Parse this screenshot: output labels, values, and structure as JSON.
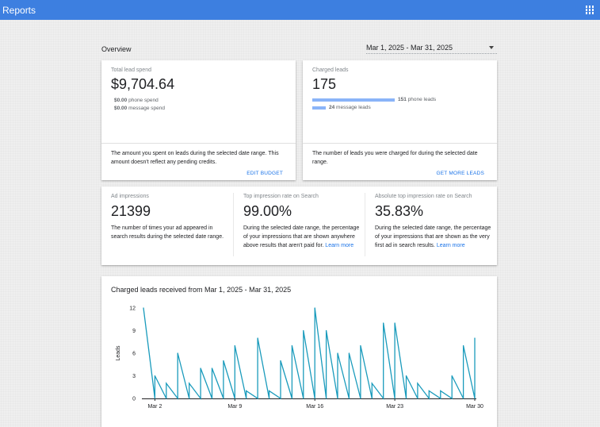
{
  "header": {
    "title": "Reports",
    "apps_icon": "apps-grid-icon"
  },
  "overview": {
    "label": "Overview",
    "date_range": "Mar 1, 2025 - Mar 31, 2025"
  },
  "spend_card": {
    "label": "Total lead spend",
    "amount": "$9,704.64",
    "phone_value": "$0.00",
    "phone_label": "phone spend",
    "message_value": "$0.00",
    "message_label": "message spend",
    "footer_text": "The amount you spent on leads during the selected date range. This amount doesn't reflect any pending credits.",
    "action": "EDIT BUDGET"
  },
  "leads_card": {
    "label": "Charged leads",
    "count": "175",
    "phone_count": "151",
    "phone_label": "phone leads",
    "phone_fraction": 0.863,
    "message_count": "24",
    "message_label": "message leads",
    "message_fraction": 0.137,
    "footer_text": "The number of leads you were charged for during the selected date range.",
    "action": "GET MORE LEADS"
  },
  "metrics": [
    {
      "label": "Ad impressions",
      "value": "21399",
      "desc": "The number of times your ad appeared in search results during the selected date range.",
      "link": ""
    },
    {
      "label": "Top impression rate on Search",
      "value": "99.00%",
      "desc": "During the selected date range, the percentage of your impressions that are shown anywhere above results that aren't paid for.",
      "link": "Learn more"
    },
    {
      "label": "Absolute top impression rate on Search",
      "value": "35.83%",
      "desc": "During the selected date range, the percentage of your impressions that are shown as the very first ad in search results.",
      "link": "Learn more"
    }
  ],
  "chart": {
    "title": "Charged leads received from Mar 1, 2025 - Mar 31, 2025",
    "line_color": "#1a9bbc"
  },
  "chart_data": {
    "type": "line",
    "title": "Charged leads received from Mar 1, 2025 - Mar 31, 2025",
    "xlabel": "",
    "ylabel": "Leads",
    "ylim": [
      0,
      12
    ],
    "yticks": [
      0,
      3,
      6,
      9,
      12
    ],
    "xtick_labels": [
      "Mar 2",
      "Mar 9",
      "Mar 16",
      "Mar 23",
      "Mar 30"
    ],
    "xtick_days": [
      2,
      9,
      16,
      23,
      30
    ],
    "grid": false,
    "series": [
      {
        "values": [
          {
            "day": 1.0,
            "y": 12
          },
          {
            "day": 2.0,
            "y": 0
          },
          {
            "day": 2.0,
            "y": 3
          },
          {
            "day": 3.0,
            "y": 0
          },
          {
            "day": 3.0,
            "y": 2
          },
          {
            "day": 4.0,
            "y": 0
          },
          {
            "day": 4.0,
            "y": 6
          },
          {
            "day": 5.0,
            "y": 0
          },
          {
            "day": 5.0,
            "y": 2
          },
          {
            "day": 6.0,
            "y": 0
          },
          {
            "day": 6.0,
            "y": 4
          },
          {
            "day": 7.0,
            "y": 0
          },
          {
            "day": 7.0,
            "y": 4
          },
          {
            "day": 8.0,
            "y": 0
          },
          {
            "day": 8.0,
            "y": 5
          },
          {
            "day": 9.0,
            "y": 0
          },
          {
            "day": 9.0,
            "y": 7
          },
          {
            "day": 10.0,
            "y": 0
          },
          {
            "day": 10.0,
            "y": 1
          },
          {
            "day": 11.0,
            "y": 0
          },
          {
            "day": 11.0,
            "y": 8
          },
          {
            "day": 12.0,
            "y": 0
          },
          {
            "day": 12.0,
            "y": 1
          },
          {
            "day": 13.0,
            "y": 0
          },
          {
            "day": 13.0,
            "y": 5
          },
          {
            "day": 14.0,
            "y": 0
          },
          {
            "day": 14.0,
            "y": 7
          },
          {
            "day": 15.0,
            "y": 0
          },
          {
            "day": 15.0,
            "y": 9
          },
          {
            "day": 16.0,
            "y": 0
          },
          {
            "day": 16.0,
            "y": 12
          },
          {
            "day": 17.0,
            "y": 0
          },
          {
            "day": 17.0,
            "y": 9
          },
          {
            "day": 18.0,
            "y": 0
          },
          {
            "day": 18.0,
            "y": 6
          },
          {
            "day": 19.0,
            "y": 0
          },
          {
            "day": 19.0,
            "y": 6
          },
          {
            "day": 20.0,
            "y": 0
          },
          {
            "day": 20.0,
            "y": 7
          },
          {
            "day": 21.0,
            "y": 0
          },
          {
            "day": 21.0,
            "y": 2
          },
          {
            "day": 22.0,
            "y": 0
          },
          {
            "day": 22.0,
            "y": 10
          },
          {
            "day": 23.0,
            "y": 0
          },
          {
            "day": 23.0,
            "y": 10
          },
          {
            "day": 24.0,
            "y": 0
          },
          {
            "day": 24.0,
            "y": 3
          },
          {
            "day": 25.0,
            "y": 0
          },
          {
            "day": 25.0,
            "y": 2
          },
          {
            "day": 26.0,
            "y": 0
          },
          {
            "day": 26.0,
            "y": 1
          },
          {
            "day": 27.0,
            "y": 0
          },
          {
            "day": 27.0,
            "y": 1
          },
          {
            "day": 28.0,
            "y": 0
          },
          {
            "day": 28.0,
            "y": 3
          },
          {
            "day": 29.0,
            "y": 0
          },
          {
            "day": 29.0,
            "y": 7
          },
          {
            "day": 30.0,
            "y": 0
          },
          {
            "day": 30.0,
            "y": 8
          }
        ]
      }
    ]
  }
}
